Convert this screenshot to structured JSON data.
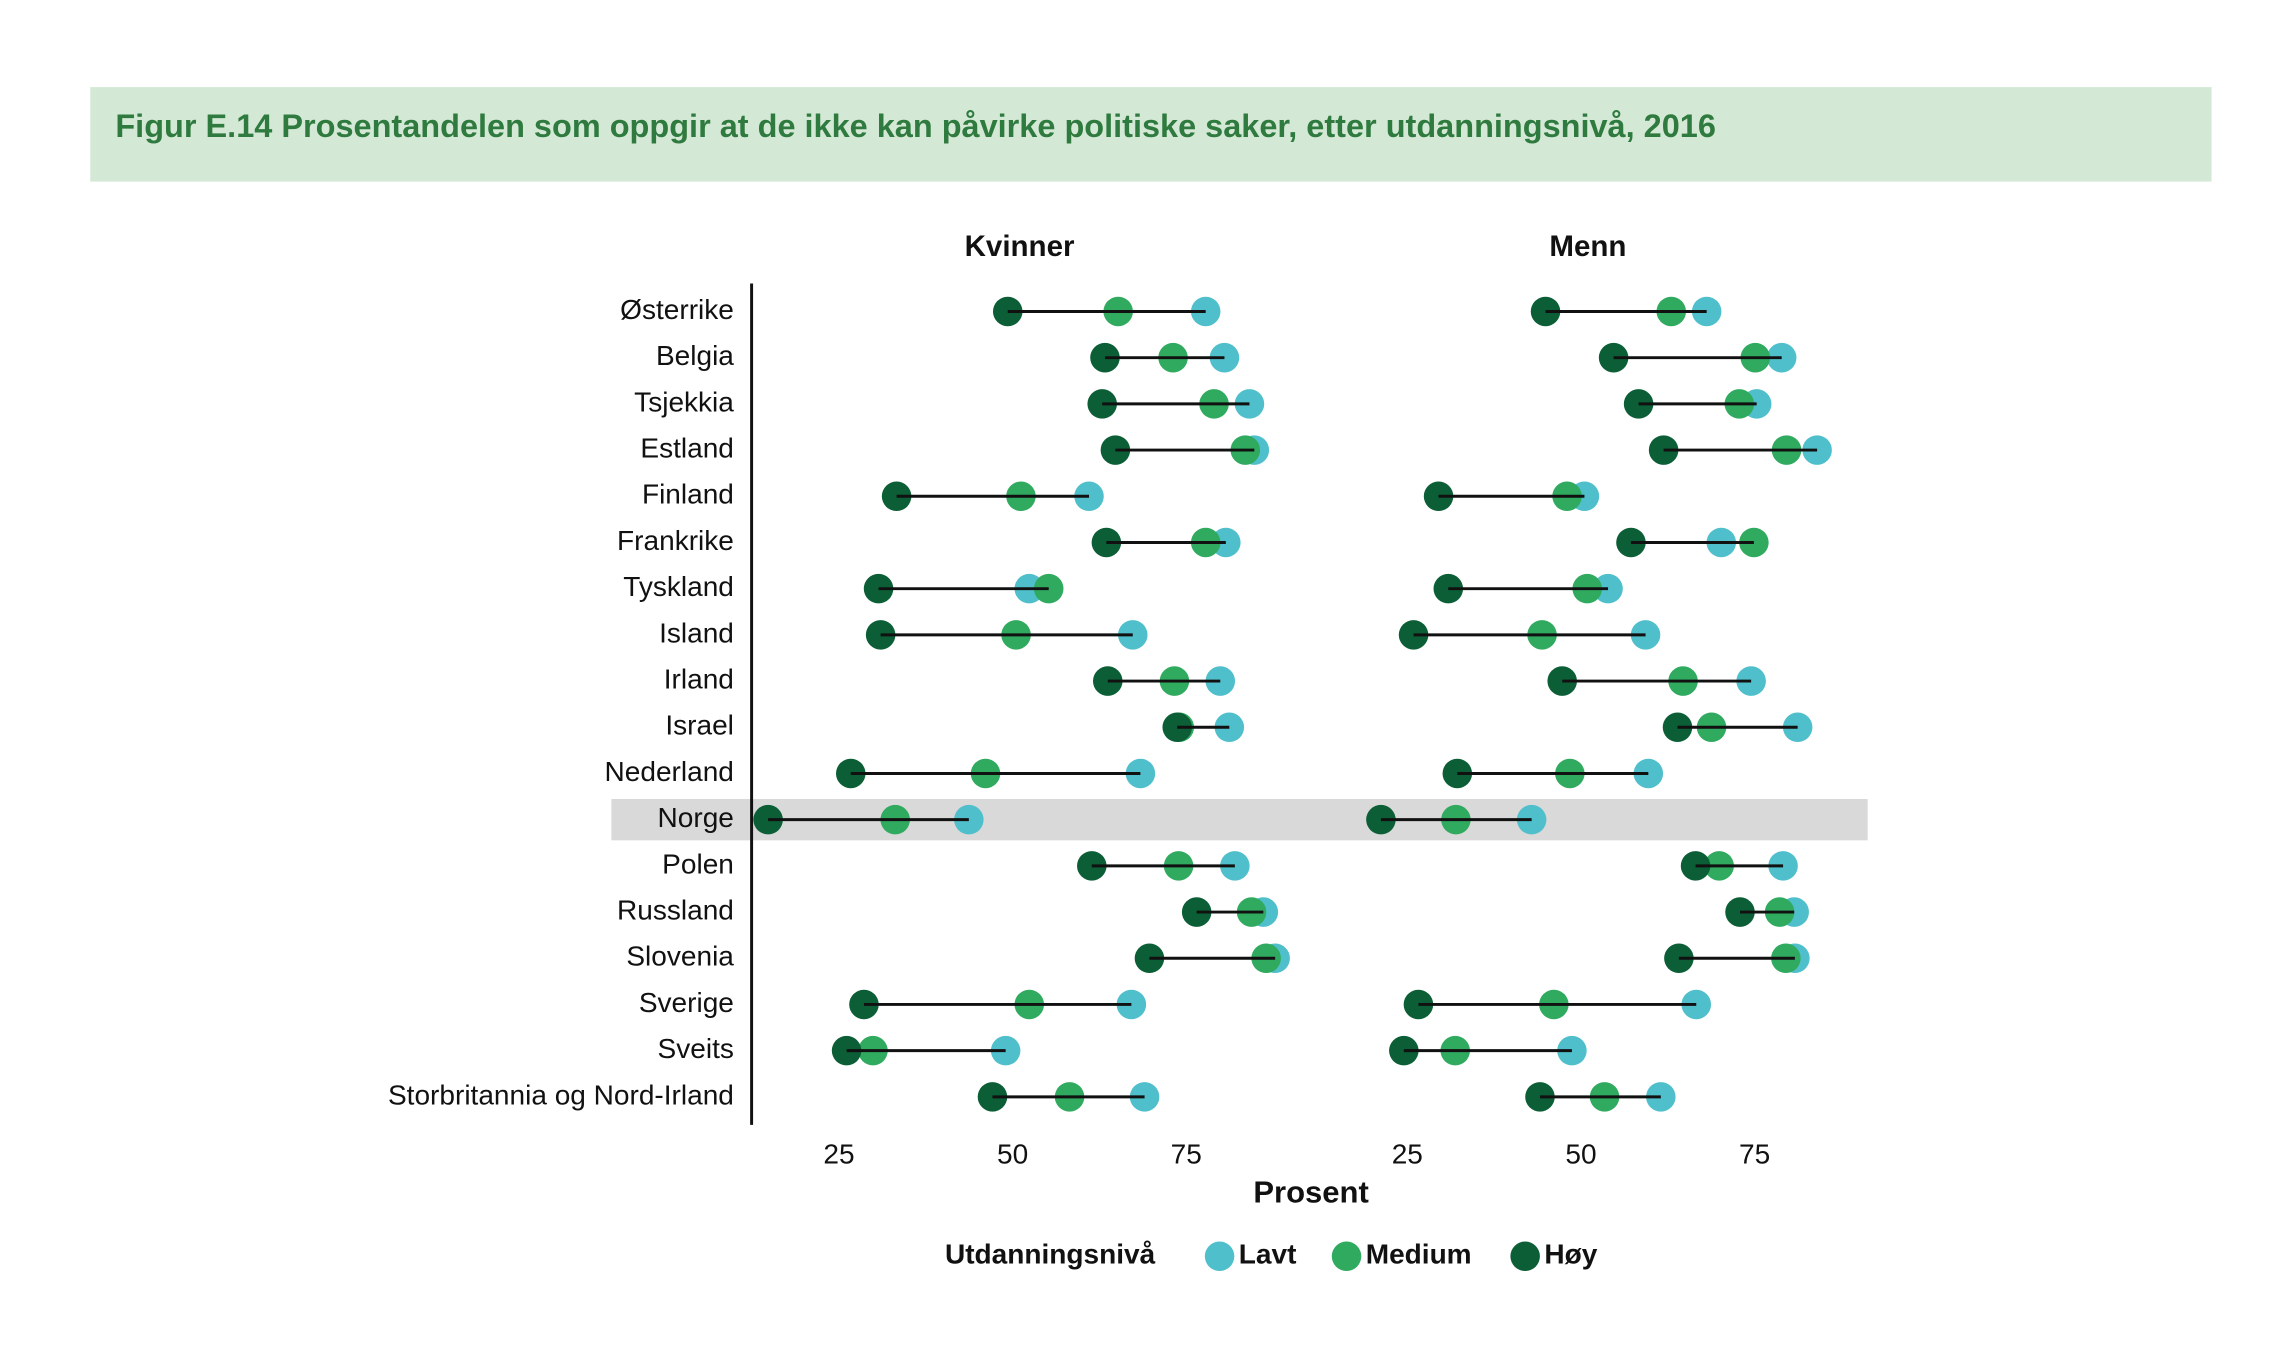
{
  "chart_data": {
    "type": "dumbbell",
    "title": "Figur E.14 Prosentandelen som oppgir at de ikke kan påvirke politiske saker, etter utdanningsnivå, 2016",
    "x_label": "Prosent",
    "legend_title": "Utdanningsnivå",
    "highlight": "Norge",
    "categories": [
      "Østerrike",
      "Belgia",
      "Tsjekkia",
      "Estland",
      "Finland",
      "Frankrike",
      "Tyskland",
      "Island",
      "Irland",
      "Israel",
      "Nederland",
      "Norge",
      "Polen",
      "Russland",
      "Slovenia",
      "Sverige",
      "Sveits",
      "Storbritannia og Nord-Irland"
    ],
    "series": [
      {
        "name": "Lavt",
        "color": "#4fbfcb"
      },
      {
        "name": "Medium",
        "color": "#2faa5f"
      },
      {
        "name": "Høy",
        "color": "#0b5e35"
      }
    ],
    "panels": [
      {
        "title": "Kvinner",
        "xlim": [
          12,
          90
        ],
        "xticks": [
          25,
          50,
          75
        ],
        "values": [
          [
            77.8,
            80.5,
            84.1,
            84.8,
            61,
            80.7,
            52.4,
            67.3,
            79.9,
            81.2,
            68.4,
            43.7,
            82,
            86.1,
            87.8,
            67.1,
            49,
            69
          ],
          [
            65.2,
            73.1,
            79,
            83.5,
            51.2,
            77.8,
            55.2,
            50.5,
            73.3,
            74,
            46.1,
            33.1,
            73.9,
            84.4,
            86.5,
            52.4,
            29.9,
            58.2
          ],
          [
            49.3,
            63.3,
            62.9,
            64.8,
            33.3,
            63.5,
            30.7,
            31,
            63.7,
            73.7,
            26.7,
            14.8,
            61.4,
            76.5,
            69.7,
            28.6,
            26.1,
            47.1
          ]
        ]
      },
      {
        "title": "Menn",
        "xlim": [
          12,
          90
        ],
        "xticks": [
          25,
          50,
          75
        ],
        "values": [
          [
            68.1,
            78.9,
            75.3,
            84,
            50.5,
            70.2,
            53.9,
            59.3,
            74.5,
            81.2,
            59.7,
            42.9,
            79.1,
            80.7,
            80.8,
            66.6,
            48.7,
            61.5
          ],
          [
            63,
            75.1,
            72.8,
            79.6,
            48,
            74.9,
            50.9,
            44.4,
            64.7,
            68.8,
            48.4,
            32,
            69.9,
            78.6,
            79.5,
            46.1,
            31.9,
            53.4
          ],
          [
            44.9,
            54.7,
            58.3,
            61.9,
            29.5,
            57.2,
            30.9,
            25.9,
            47.3,
            63.9,
            32.2,
            21.2,
            66.5,
            72.9,
            64.1,
            26.6,
            24.5,
            44.1
          ]
        ]
      }
    ]
  }
}
